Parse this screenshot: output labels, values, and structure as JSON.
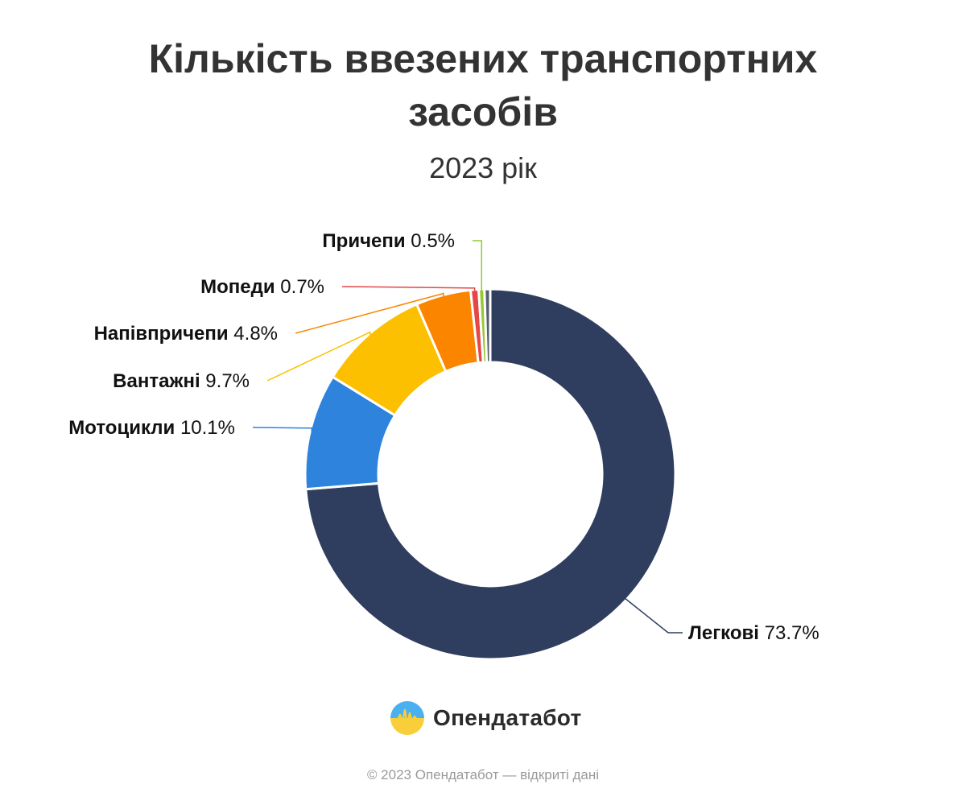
{
  "chart_data": {
    "type": "pie",
    "title_lines": [
      "Кількість ввезених транспортних",
      "засобів"
    ],
    "subtitle": "2023 рік",
    "slices": [
      {
        "label": "Легкові",
        "value": 73.7,
        "value_label": "73.7%",
        "color": "#2f3e5f"
      },
      {
        "label": "Мотоцикли",
        "value": 10.1,
        "value_label": "10.1%",
        "color": "#2e83dc"
      },
      {
        "label": "Вантажні",
        "value": 9.7,
        "value_label": "9.7%",
        "color": "#fcc000"
      },
      {
        "label": "Напівпричепи",
        "value": 4.8,
        "value_label": "4.8%",
        "color": "#fc8500"
      },
      {
        "label": "Мопеди",
        "value": 0.7,
        "value_label": "0.7%",
        "color": "#e54646"
      },
      {
        "label": "Причепи",
        "value": 0.5,
        "value_label": "0.5%",
        "color": "#96c832"
      },
      {
        "label": "",
        "value": 0.5,
        "value_label": "",
        "color": "#555d6e"
      }
    ]
  },
  "logo": {
    "name": "Опендатабот",
    "icon": "opendatabot-logo-icon"
  },
  "footer": "© 2023 Опендатабот — відкриті дані"
}
